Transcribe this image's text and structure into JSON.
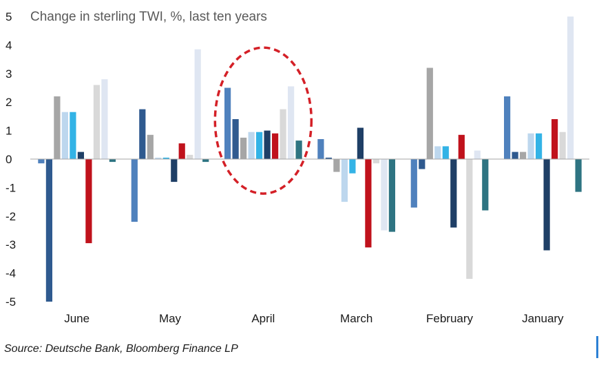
{
  "title": "Change in sterling TWI, %, last ten years",
  "source": "Source: Deutsche Bank, Bloomberg Finance LP",
  "colors": {
    "series": [
      "#4f81bd",
      "#2f5a8f",
      "#a6a6a6",
      "#bdd7ee",
      "#33b3e6",
      "#1f3f66",
      "#c0121c",
      "#d9d9d9",
      "#dfe6f2",
      "#2e7482"
    ],
    "annotation": "#d42027",
    "axis": "#a6a6a6"
  },
  "chart_data": {
    "type": "bar",
    "title": "Change in sterling TWI, %, last ten years",
    "xlabel": "",
    "ylabel": "",
    "ylim": [
      -5,
      5
    ],
    "yticks": [
      5,
      4,
      3,
      2,
      1,
      0,
      -1,
      -2,
      -3,
      -4,
      -5
    ],
    "categories": [
      "June",
      "May",
      "April",
      "March",
      "February",
      "January"
    ],
    "series": [
      {
        "values": [
          -0.15,
          -2.2,
          2.5,
          0.7,
          -1.7,
          2.2
        ]
      },
      {
        "values": [
          -5.0,
          1.75,
          1.4,
          0.05,
          -0.35,
          0.25
        ]
      },
      {
        "values": [
          2.2,
          0.85,
          0.75,
          -0.45,
          3.2,
          0.25
        ]
      },
      {
        "values": [
          1.65,
          0.05,
          0.95,
          -1.5,
          0.45,
          0.9
        ]
      },
      {
        "values": [
          1.65,
          0.05,
          0.95,
          -0.5,
          0.45,
          0.9
        ]
      },
      {
        "values": [
          0.25,
          -0.8,
          1.0,
          1.1,
          -2.4,
          -3.2
        ]
      },
      {
        "values": [
          -2.95,
          0.55,
          0.9,
          -3.1,
          0.85,
          1.4
        ]
      },
      {
        "values": [
          2.6,
          0.15,
          1.75,
          -0.15,
          -4.2,
          0.95
        ]
      },
      {
        "values": [
          2.8,
          3.85,
          2.55,
          -2.5,
          0.3,
          5.0
        ]
      },
      {
        "values": [
          -0.1,
          -0.1,
          0.65,
          -2.55,
          -1.8,
          -1.15
        ]
      }
    ],
    "annotations": [
      {
        "type": "dashed-ellipse",
        "category": "April"
      }
    ]
  }
}
